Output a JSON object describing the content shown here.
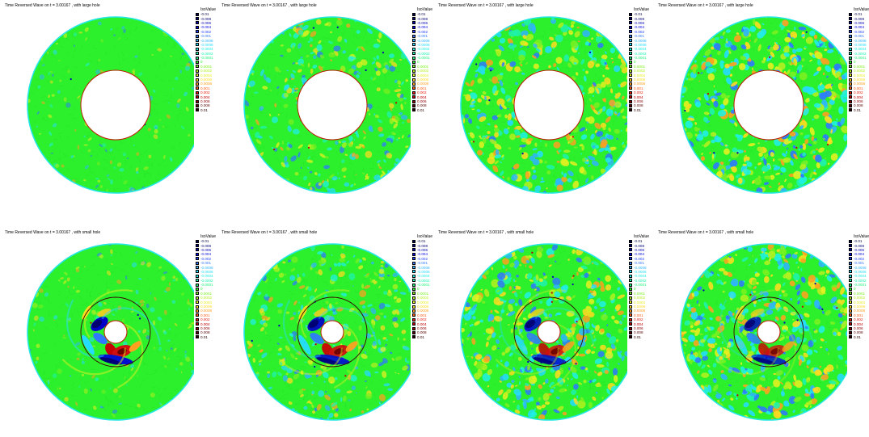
{
  "legend": {
    "title": "IsoValue",
    "entries": [
      {
        "label": "-0.01",
        "color": "#000045"
      },
      {
        "label": "-0.008",
        "color": "#00007a"
      },
      {
        "label": "-0.006",
        "color": "#0000b0"
      },
      {
        "label": "-0.004",
        "color": "#0000e0"
      },
      {
        "label": "-0.002",
        "color": "#1a3cff"
      },
      {
        "label": "-0.001",
        "color": "#2f78ff"
      },
      {
        "label": "-0.0008",
        "color": "#2fb4ff"
      },
      {
        "label": "-0.0006",
        "color": "#25dcff"
      },
      {
        "label": "-0.0004",
        "color": "#20f0e6"
      },
      {
        "label": "-0.0002",
        "color": "#1ef2b0"
      },
      {
        "label": "-0.0001",
        "color": "#22f27a"
      },
      {
        "label": "0",
        "color": "#2cf02c"
      },
      {
        "label": "0.0001",
        "color": "#7af020"
      },
      {
        "label": "0.0002",
        "color": "#b4f020"
      },
      {
        "label": "0.0004",
        "color": "#e6f020"
      },
      {
        "label": "0.0006",
        "color": "#ffdc20"
      },
      {
        "label": "0.0008",
        "color": "#ffa020"
      },
      {
        "label": "0.001",
        "color": "#ff5a14"
      },
      {
        "label": "0.002",
        "color": "#e61a0a"
      },
      {
        "label": "0.004",
        "color": "#c00000"
      },
      {
        "label": "0.006",
        "color": "#8c0000"
      },
      {
        "label": "0.008",
        "color": "#5a0000"
      },
      {
        "label": "0.01",
        "color": "#2a0000"
      }
    ]
  },
  "colors": {
    "outer_boundary": "#23e6e6",
    "hole_boundary_large": "#c01800",
    "hole_boundary_small": "#c01800",
    "reference_circle": "#3a0000",
    "field_base": "#2cf02c"
  },
  "panels": [
    {
      "title": "Time Reversed Wave on t = 3.00167 , with large hole",
      "hole": "large",
      "noise": 0.15,
      "focus": 0.0
    },
    {
      "title": "Time Reversed Wave on t = 3.00167 , with large hole",
      "hole": "large",
      "noise": 0.55,
      "focus": 0.0
    },
    {
      "title": "Time Reversed Wave on t = 3.00167 , with large hole",
      "hole": "large",
      "noise": 0.8,
      "focus": 0.0
    },
    {
      "title": "Time Reversed Wave on t = 3.00167 , with large hole",
      "hole": "large",
      "noise": 0.9,
      "focus": 0.0
    },
    {
      "title": "Time Reversed Wave on t = 3.00167 , with small hole",
      "hole": "small",
      "noise": 0.2,
      "focus": 1.0
    },
    {
      "title": "Time Reversed Wave on t = 3.00167 , with small hole",
      "hole": "small",
      "noise": 0.55,
      "focus": 0.85
    },
    {
      "title": "Time Reversed Wave on t = 3.00167 , with small hole",
      "hole": "small",
      "noise": 0.8,
      "focus": 0.7
    },
    {
      "title": "Time Reversed Wave on t = 3.00167 , with small hole",
      "hole": "small",
      "noise": 0.85,
      "focus": 0.6
    }
  ]
}
